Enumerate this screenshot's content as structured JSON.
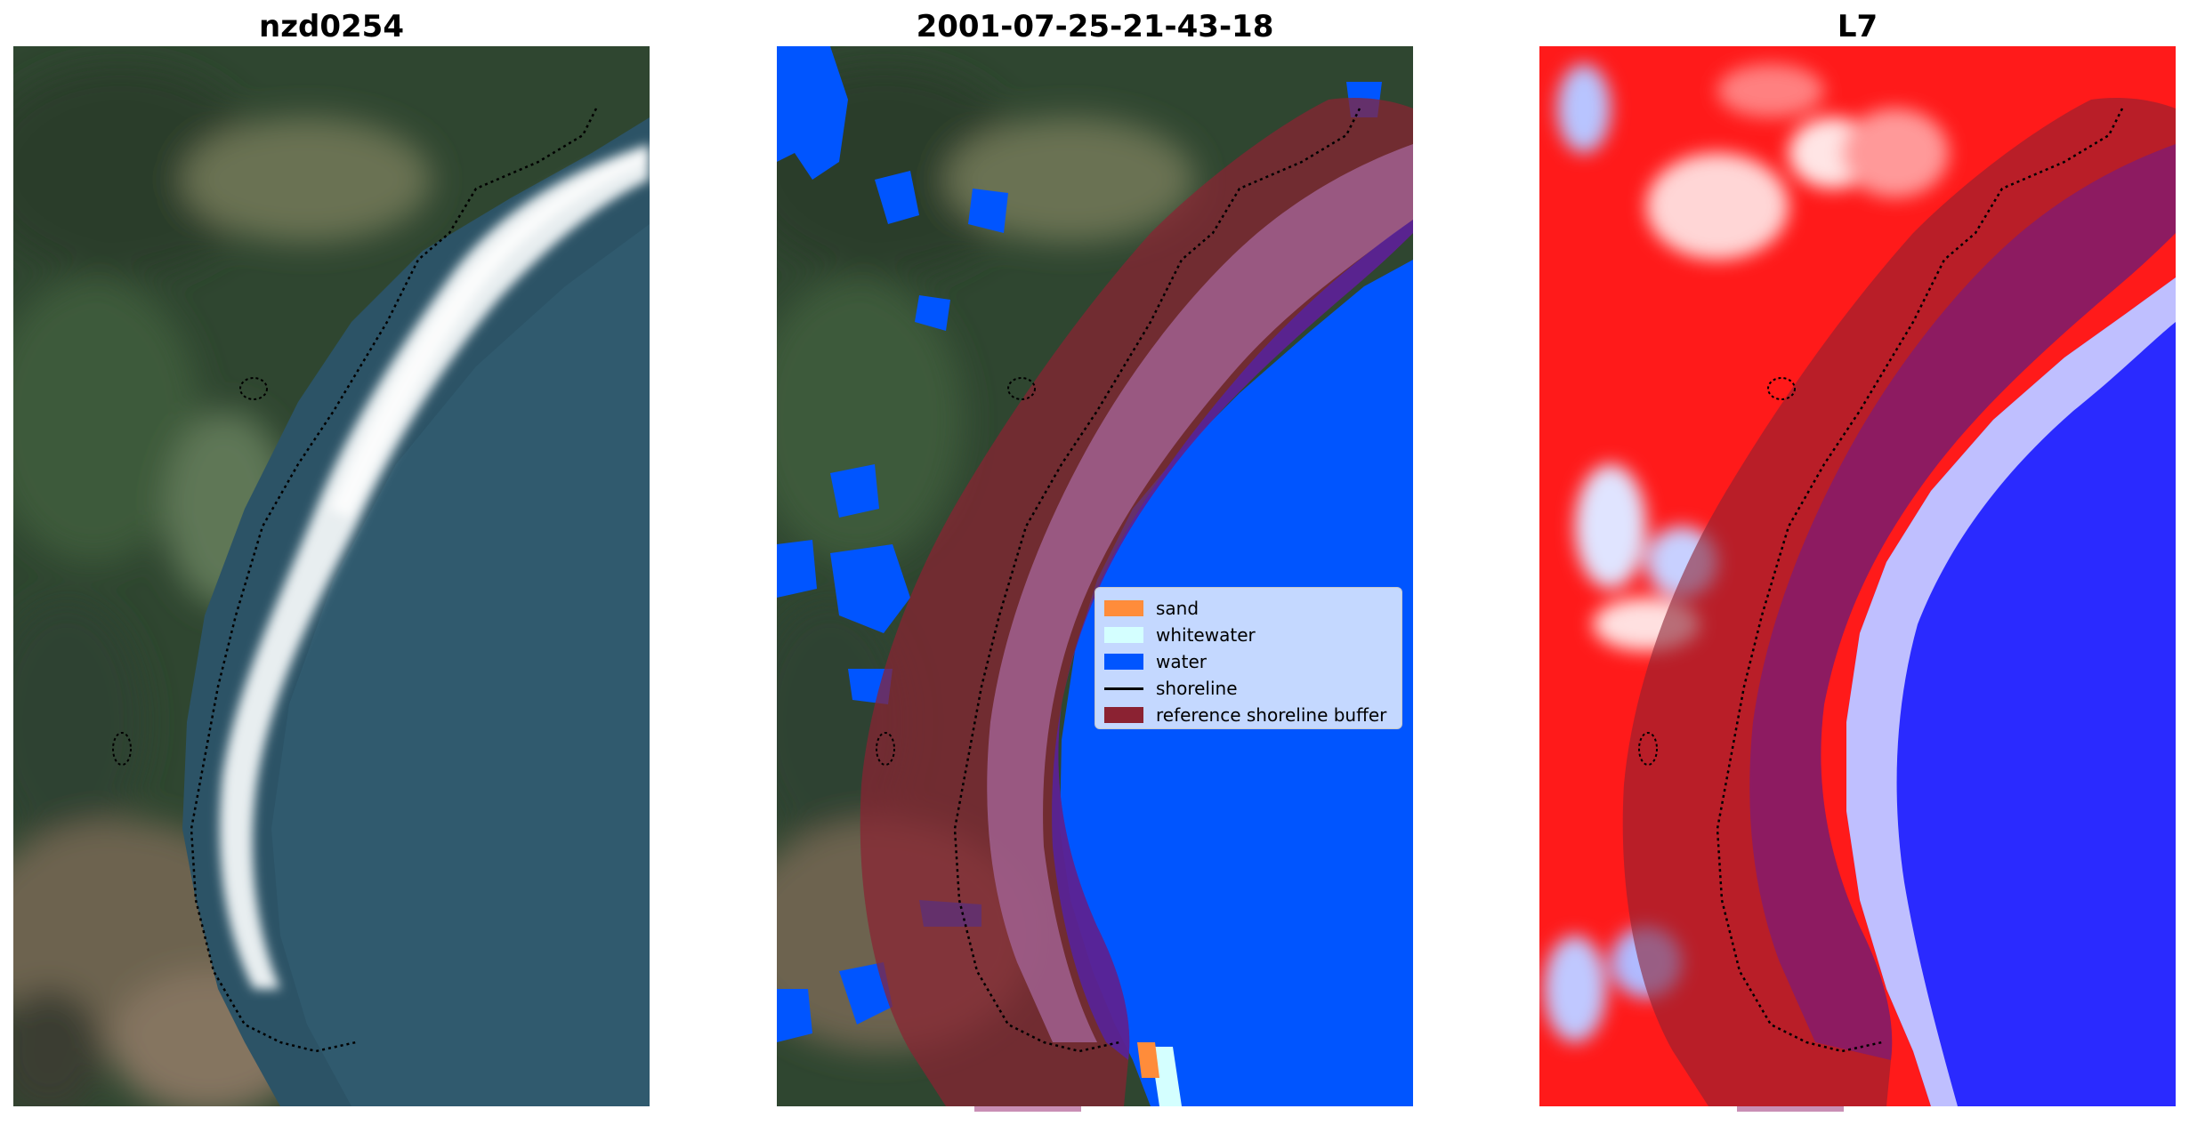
{
  "panels": [
    {
      "title": "nzd0254"
    },
    {
      "title": "2001-07-25-21-43-18"
    },
    {
      "title": "L7"
    }
  ],
  "legend": {
    "items": [
      {
        "label": "sand",
        "kind": "patch",
        "color": "#ff8c3a"
      },
      {
        "label": "whitewater",
        "kind": "patch",
        "color": "#d4ffff"
      },
      {
        "label": "water",
        "kind": "patch",
        "color": "#0055ff"
      },
      {
        "label": "shoreline",
        "kind": "line",
        "color": "#000000"
      },
      {
        "label": "reference shoreline buffer",
        "kind": "patch",
        "color": "#8b2232"
      }
    ]
  },
  "colors": {
    "sand": "#ff8c3a",
    "whitewater": "#d4ffff",
    "water": "#0055ff",
    "shoreline": "#000000",
    "buffer": "#8b2232",
    "classified_sand_band": "#a0608f",
    "classified_water_band": "#5522a0"
  }
}
